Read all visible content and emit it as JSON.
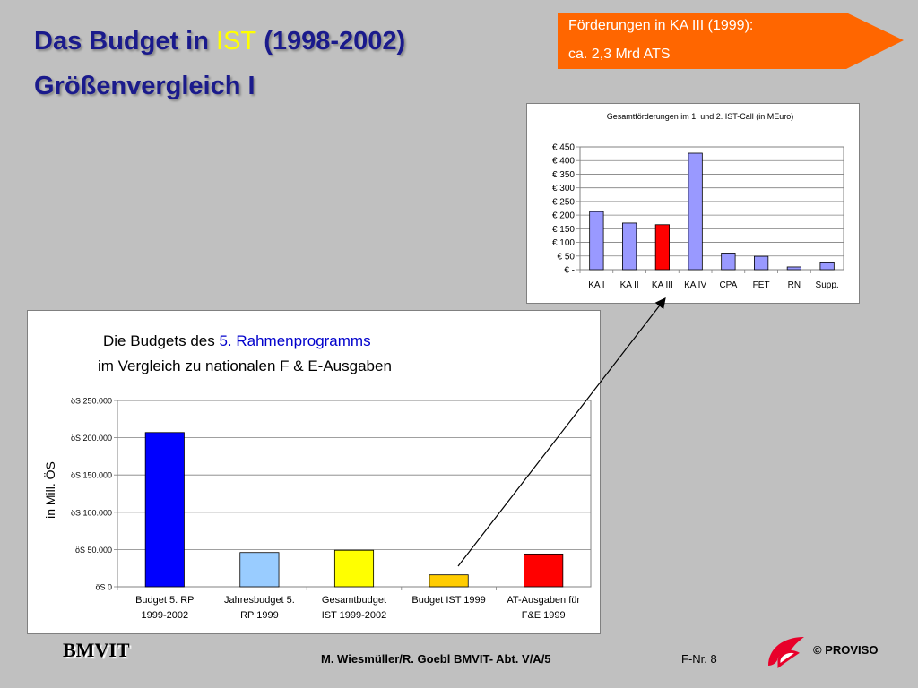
{
  "header": {
    "title_part1": "Das Budget in ",
    "title_highlight": "IST",
    "title_part2": " (1998-2002)",
    "subtitle": "Größenvergleich I"
  },
  "callout": {
    "line1": "Förderungen in KA III (1999):",
    "line2": "ca. 2,3 Mrd ATS",
    "color": "#ff6600"
  },
  "chart_data": [
    {
      "type": "bar",
      "title": "Gesamtförderungen im 1. und 2. IST-Call (in MEuro)",
      "categories": [
        "KA I",
        "KA II",
        "KA III",
        "KA IV",
        "CPA",
        "FET",
        "RN",
        "Supp."
      ],
      "values": [
        213,
        171,
        165,
        427,
        61,
        49,
        10,
        25
      ],
      "colors": [
        "#9999ff",
        "#9999ff",
        "#ff0000",
        "#9999ff",
        "#9999ff",
        "#9999ff",
        "#9999ff",
        "#9999ff"
      ],
      "yticks": [
        "€ -",
        "€ 50",
        "€ 100",
        "€ 150",
        "€ 200",
        "€ 250",
        "€ 300",
        "€ 350",
        "€ 400",
        "€ 450"
      ],
      "ylim": [
        0,
        450
      ],
      "grid": true
    },
    {
      "type": "bar",
      "title_part1": "Die Budgets des ",
      "title_highlight": "5. Rahmenprogramms",
      "title_line2": "im Vergleich zu nationalen F & E-Ausgaben",
      "ylabel": "in Mill. ÖS",
      "categories": [
        [
          "Budget 5. RP",
          "1999-2002"
        ],
        [
          "Jahresbudget 5.",
          "RP 1999"
        ],
        [
          "Gesamtbudget",
          "IST 1999-2002"
        ],
        [
          "Budget IST 1999"
        ],
        [
          "AT-Ausgaben für",
          "F&E 1999"
        ]
      ],
      "values": [
        207000,
        46000,
        49000,
        16000,
        44000
      ],
      "colors": [
        "#0000ff",
        "#99ccff",
        "#ffff00",
        "#ffcc00",
        "#ff0000"
      ],
      "yticks": [
        "öS 0",
        "öS 50.000",
        "öS 100.000",
        "öS 150.000",
        "öS 200.000",
        "öS 250.000"
      ],
      "ylim": [
        0,
        250000
      ],
      "grid": true
    }
  ],
  "footer": {
    "logo": "BMVIT",
    "author": "M. Wiesmüller/R. Goebl BMVIT- Abt. V/A/5",
    "page": "F-Nr. 8",
    "copyright": "© PROVISO"
  }
}
